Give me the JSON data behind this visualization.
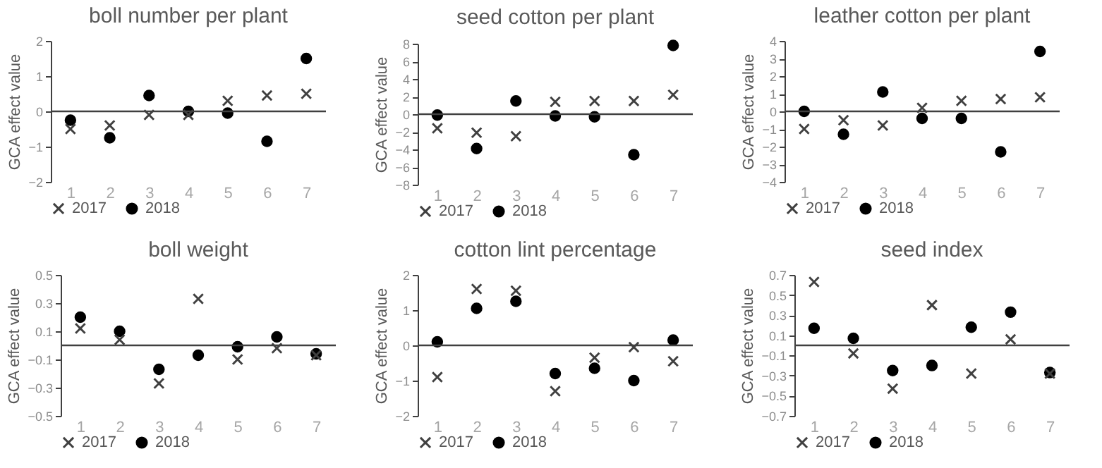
{
  "chart_data": [
    {
      "type": "scatter",
      "ref_lines": [
        {
          "axis": "y",
          "value": 0
        }
      ],
      "title": "boll number per plant",
      "ylabel": "GCA effect value",
      "categories": [
        "1",
        "2",
        "3",
        "4",
        "5",
        "6",
        "7"
      ],
      "ylim": [
        -2,
        2
      ],
      "yticks": [
        -2,
        -1,
        0,
        1,
        2
      ],
      "grid": false,
      "legend": "bottom",
      "series": [
        {
          "name": "2017",
          "color": "#404040",
          "marker": "cross",
          "values": [
            -0.5,
            -0.4,
            -0.1,
            -0.1,
            0.3,
            0.45,
            0.5
          ]
        },
        {
          "name": "2018",
          "color": "#000000",
          "marker": "circle",
          "values": [
            -0.25,
            -0.75,
            0.45,
            0,
            -0.05,
            -0.85,
            1.5
          ]
        }
      ]
    },
    {
      "type": "scatter",
      "ref_lines": [
        {
          "axis": "y",
          "value": 0
        }
      ],
      "title": "seed cotton per plant",
      "ylabel": "GCA effect value",
      "categories": [
        "1",
        "2",
        "3",
        "4",
        "5",
        "6",
        "7"
      ],
      "ylim": [
        -8,
        8
      ],
      "yticks": [
        -8,
        -6,
        -4,
        -2,
        0,
        2,
        4,
        6,
        8
      ],
      "grid": false,
      "legend": "bottom",
      "series": [
        {
          "name": "2017",
          "color": "#404040",
          "marker": "cross",
          "values": [
            -1.6,
            -2.1,
            -2.5,
            1.4,
            1.5,
            1.5,
            2.2
          ]
        },
        {
          "name": "2018",
          "color": "#000000",
          "marker": "circle",
          "values": [
            -0.1,
            -3.9,
            1.5,
            -0.2,
            -0.3,
            -4.6,
            7.8
          ]
        }
      ]
    },
    {
      "type": "scatter",
      "ref_lines": [
        {
          "axis": "y",
          "value": 0
        }
      ],
      "title": "leather cotton per plant",
      "ylabel": "GCA effect value",
      "categories": [
        "1",
        "2",
        "3",
        "4",
        "5",
        "6",
        "7"
      ],
      "ylim": [
        -4,
        4
      ],
      "yticks": [
        -4,
        -3,
        -2,
        -1,
        0,
        1,
        2,
        3,
        4
      ],
      "grid": false,
      "legend": "bottom",
      "series": [
        {
          "name": "2017",
          "color": "#404040",
          "marker": "cross",
          "values": [
            -1.0,
            -0.5,
            -0.8,
            0.2,
            0.6,
            0.7,
            0.8
          ]
        },
        {
          "name": "2018",
          "color": "#000000",
          "marker": "circle",
          "values": [
            0,
            -1.3,
            1.1,
            -0.4,
            -0.4,
            -2.3,
            3.4
          ]
        }
      ]
    },
    {
      "type": "scatter",
      "ref_lines": [
        {
          "axis": "y",
          "value": 0
        }
      ],
      "title": "boll weight",
      "ylabel": "GCA effect value",
      "categories": [
        "1",
        "2",
        "3",
        "4",
        "5",
        "6",
        "7"
      ],
      "ylim": [
        -0.5,
        0.5
      ],
      "yticks": [
        -0.5,
        -0.3,
        -0.1,
        0.1,
        0.3,
        0.5
      ],
      "grid": false,
      "legend": "bottom",
      "series": [
        {
          "name": "2017",
          "color": "#404040",
          "marker": "cross",
          "values": [
            0.12,
            0.04,
            -0.27,
            0.33,
            -0.1,
            -0.02,
            -0.07
          ]
        },
        {
          "name": "2018",
          "color": "#000000",
          "marker": "circle",
          "values": [
            0.2,
            0.1,
            -0.17,
            -0.07,
            -0.01,
            0.06,
            -0.06
          ]
        }
      ]
    },
    {
      "type": "scatter",
      "ref_lines": [
        {
          "axis": "y",
          "value": 0
        }
      ],
      "title": "cotton lint percentage",
      "ylabel": "GCA effect value",
      "categories": [
        "1",
        "2",
        "3",
        "4",
        "5",
        "6",
        "7"
      ],
      "ylim": [
        -2,
        2
      ],
      "yticks": [
        -2,
        -1,
        0,
        1,
        2
      ],
      "grid": false,
      "legend": "bottom",
      "series": [
        {
          "name": "2017",
          "color": "#404040",
          "marker": "cross",
          "values": [
            -0.9,
            1.6,
            1.55,
            -1.3,
            -0.35,
            -0.05,
            -0.45
          ]
        },
        {
          "name": "2018",
          "color": "#000000",
          "marker": "circle",
          "values": [
            0.1,
            1.05,
            1.25,
            -0.8,
            -0.65,
            -1.0,
            0.15
          ]
        }
      ]
    },
    {
      "type": "scatter",
      "ref_lines": [
        {
          "axis": "y",
          "value": 0
        }
      ],
      "title": "seed index",
      "ylabel": "GCA effect value",
      "categories": [
        "1",
        "2",
        "3",
        "4",
        "5",
        "6",
        "7"
      ],
      "ylim": [
        -0.7,
        0.7
      ],
      "yticks": [
        -0.7,
        -0.5,
        -0.3,
        -0.1,
        0.1,
        0.3,
        0.5,
        0.7
      ],
      "grid": false,
      "legend": "bottom",
      "series": [
        {
          "name": "2017",
          "color": "#404040",
          "marker": "cross",
          "values": [
            0.63,
            -0.08,
            -0.43,
            0.4,
            -0.28,
            0.06,
            -0.28
          ]
        },
        {
          "name": "2018",
          "color": "#000000",
          "marker": "circle",
          "values": [
            0.17,
            0.07,
            -0.25,
            -0.2,
            0.18,
            0.33,
            -0.27
          ]
        }
      ]
    }
  ]
}
